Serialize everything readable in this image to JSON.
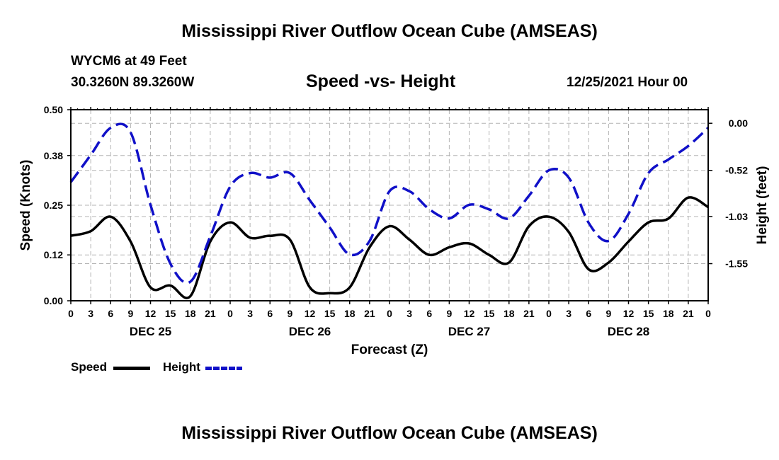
{
  "page": {
    "title": "Mississippi River Outflow Ocean Cube (AMSEAS)",
    "footer_title": "Mississippi River Outflow Ocean Cube (AMSEAS)",
    "station": "WYCM6 at 49 Feet",
    "coordinates": "30.3260N  89.3260W",
    "subtitle": "Speed -vs- Height",
    "datetime": "12/25/2021 Hour 00"
  },
  "legend": {
    "speed_label": "Speed",
    "height_label": "Height"
  },
  "chart_data": {
    "type": "line",
    "title": "Speed -vs- Height",
    "xlabel": "Forecast (Z)",
    "ylabel": "Speed (Knots)",
    "y2label": "Height (feet)",
    "ylim": [
      0.0,
      0.5
    ],
    "y2lim": [
      -1.96,
      0.15
    ],
    "yticks": [
      "0.00",
      "0.12",
      "0.25",
      "0.38",
      "0.50"
    ],
    "y2ticks": [
      "0.00",
      "-0.52",
      "-1.03",
      "-1.55"
    ],
    "x_hours": [
      0,
      3,
      6,
      9,
      12,
      15,
      18,
      21,
      24,
      27,
      30,
      33,
      36,
      39,
      42,
      45,
      48,
      51,
      54,
      57,
      60,
      63,
      66,
      69,
      72,
      75,
      78,
      81,
      84,
      87,
      90,
      93,
      96
    ],
    "x_tick_labels": [
      "0",
      "3",
      "6",
      "9",
      "12",
      "15",
      "18",
      "21",
      "0",
      "3",
      "6",
      "9",
      "12",
      "15",
      "18",
      "21",
      "0",
      "3",
      "6",
      "9",
      "12",
      "15",
      "18",
      "21",
      "0",
      "3",
      "6",
      "9",
      "12",
      "15",
      "18",
      "21",
      "0"
    ],
    "day_labels": [
      "DEC 25",
      "DEC 26",
      "DEC 27",
      "DEC 28"
    ],
    "grid": true,
    "series": [
      {
        "name": "Speed",
        "axis": "left",
        "color": "#000000",
        "style": "solid",
        "values": [
          0.17,
          0.182,
          0.22,
          0.155,
          0.035,
          0.04,
          0.012,
          0.155,
          0.205,
          0.165,
          0.17,
          0.16,
          0.035,
          0.02,
          0.035,
          0.14,
          0.195,
          0.16,
          0.12,
          0.14,
          0.15,
          0.12,
          0.1,
          0.195,
          0.22,
          0.18,
          0.082,
          0.1,
          0.155,
          0.205,
          0.215,
          0.27,
          0.245
        ]
      },
      {
        "name": "Height",
        "axis": "right",
        "color": "#1010c8",
        "style": "dashed",
        "values": [
          -0.65,
          -0.35,
          -0.05,
          -0.1,
          -0.9,
          -1.55,
          -1.75,
          -1.25,
          -0.7,
          -0.55,
          -0.6,
          -0.55,
          -0.85,
          -1.15,
          -1.45,
          -1.3,
          -0.75,
          -0.75,
          -0.95,
          -1.05,
          -0.9,
          -0.95,
          -1.05,
          -0.8,
          -0.52,
          -0.6,
          -1.1,
          -1.3,
          -1.0,
          -0.55,
          -0.4,
          -0.25,
          -0.05
        ]
      }
    ]
  }
}
